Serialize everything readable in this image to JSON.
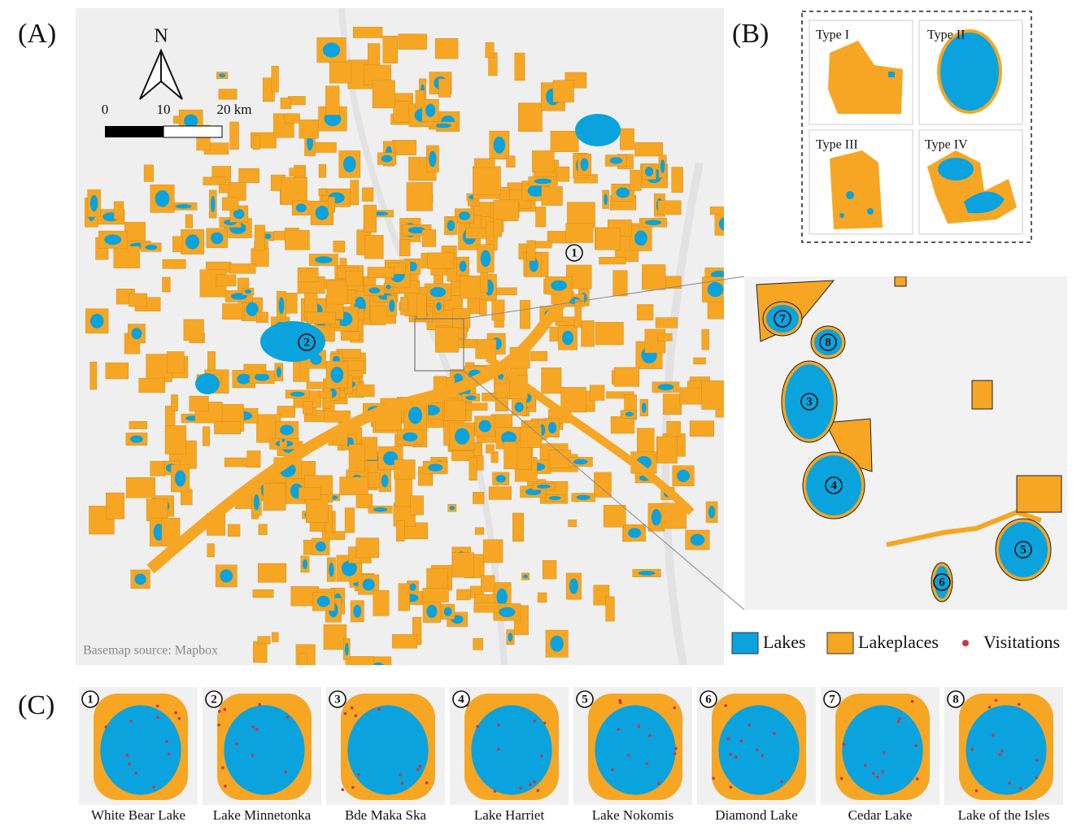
{
  "panel_a": {
    "label": "(A)",
    "north": "N",
    "scale": [
      "0",
      "10",
      "20 km"
    ],
    "source": "Basemap source: Mapbox",
    "markers": [
      "1",
      "2"
    ]
  },
  "panel_b": {
    "label": "(B)",
    "types": [
      "Type I",
      "Type II",
      "Type III",
      "Type IV"
    ]
  },
  "inset": {
    "markers": [
      "7",
      "8",
      "3",
      "4",
      "5",
      "6"
    ]
  },
  "legend": [
    "Lakes",
    "Lakeplaces",
    "Visitations"
  ],
  "panel_c": {
    "label": "(C)",
    "lakes": [
      {
        "number": "1",
        "name": "White Bear Lake"
      },
      {
        "number": "2",
        "name": "Lake Minnetonka"
      },
      {
        "number": "3",
        "name": "Bde Maka Ska"
      },
      {
        "number": "4",
        "name": "Lake Harriet"
      },
      {
        "number": "5",
        "name": "Lake Nokomis"
      },
      {
        "number": "6",
        "name": "Diamond Lake"
      },
      {
        "number": "7",
        "name": "Cedar Lake"
      },
      {
        "number": "8",
        "name": "Lake of the Isles"
      }
    ]
  }
}
